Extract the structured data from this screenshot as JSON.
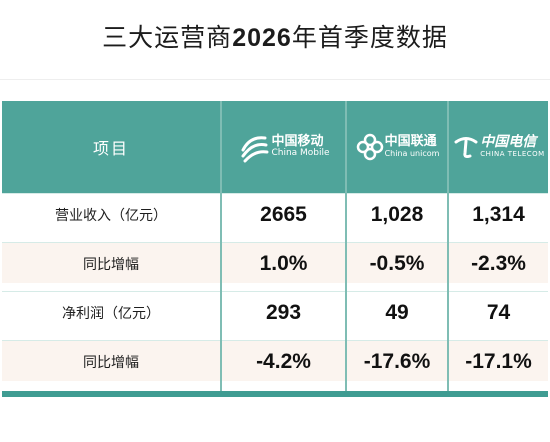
{
  "title": {
    "prefix": "三大运营商",
    "year": "2026",
    "suffix": "年首季度数据"
  },
  "header": {
    "label": "项目",
    "operators": [
      {
        "name_cn": "中国移动",
        "name_en": "China Mobile"
      },
      {
        "name_cn": "中国联通",
        "name_en": "China unicom"
      },
      {
        "name_cn": "中国电信",
        "name_en": "CHINA TELECOM"
      }
    ]
  },
  "rows": [
    {
      "label": "营业收入（亿元）",
      "values": [
        "2665",
        "1,028",
        "1,314"
      ]
    },
    {
      "label": "同比增幅",
      "values": [
        "1.0%",
        "-0.5%",
        "-2.3%"
      ]
    },
    {
      "label": "净利润（亿元）",
      "values": [
        "293",
        "49",
        "74"
      ]
    },
    {
      "label": "同比增幅",
      "values": [
        "-4.2%",
        "-17.6%",
        "-17.1%"
      ]
    }
  ],
  "colors": {
    "header_bg": "#4fa49a",
    "row_shade": "#fbf4ef",
    "bottom_bar": "#3f9c92"
  },
  "icons": [
    "china-mobile-logo-icon",
    "china-unicom-logo-icon",
    "china-telecom-logo-icon"
  ]
}
